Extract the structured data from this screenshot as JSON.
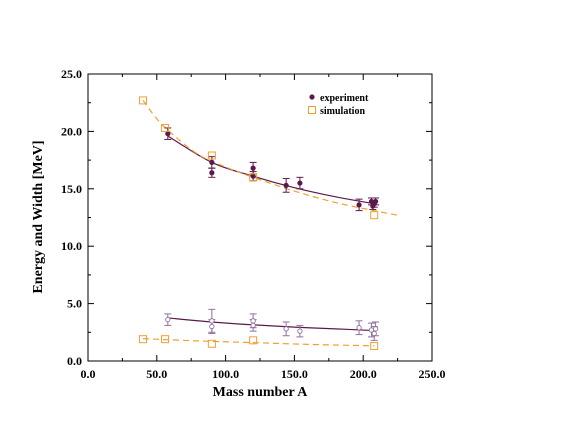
{
  "chart_data": {
    "type": "scatter",
    "title": "",
    "xlabel": "Mass number A",
    "ylabel": "Energy and Width  [MeV]",
    "xlim": [
      0,
      250
    ],
    "ylim": [
      0,
      25
    ],
    "xticks": [
      0,
      50,
      100,
      150,
      200,
      250
    ],
    "yticks": [
      0,
      5,
      10,
      15,
      20,
      25
    ],
    "xtick_labels": [
      "0.0",
      "50.0",
      "100.0",
      "150.0",
      "200.0",
      "250.0"
    ],
    "ytick_labels": [
      "0.0",
      "5.0",
      "10.0",
      "15.0",
      "20.0",
      "25.0"
    ],
    "grid": false,
    "legend_position": "top-right",
    "legend": [
      {
        "label": "experiment",
        "marker": "filled-circle",
        "color": "#5a1a4a"
      },
      {
        "label": "simulation",
        "marker": "open-square",
        "color": "#f0a030"
      }
    ],
    "colors": {
      "experiment": "#5a1a4a",
      "experiment_width": "#9070a0",
      "simulation": "#f0a030"
    },
    "series": [
      {
        "name": "experiment",
        "kind": "energy",
        "marker": "filled-circle",
        "points": [
          {
            "x": 58,
            "y": 19.8,
            "err": 0.5
          },
          {
            "x": 90,
            "y": 17.3,
            "err": 0.5
          },
          {
            "x": 90,
            "y": 16.4,
            "err": 0.4
          },
          {
            "x": 120,
            "y": 16.8,
            "err": 0.5
          },
          {
            "x": 120,
            "y": 16.1,
            "err": 0.4
          },
          {
            "x": 144,
            "y": 15.3,
            "err": 0.6
          },
          {
            "x": 154,
            "y": 15.5,
            "err": 0.5
          },
          {
            "x": 197,
            "y": 13.6,
            "err": 0.5
          },
          {
            "x": 206,
            "y": 13.9,
            "err": 0.3
          },
          {
            "x": 207,
            "y": 13.5,
            "err": 0.3
          },
          {
            "x": 208,
            "y": 13.7,
            "err": 0.3
          },
          {
            "x": 209,
            "y": 13.9,
            "err": 0.3
          }
        ]
      },
      {
        "name": "experiment",
        "kind": "width",
        "marker": "open-circle",
        "points": [
          {
            "x": 58,
            "y": 3.6,
            "err": 0.5
          },
          {
            "x": 90,
            "y": 3.5,
            "err": 1.0
          },
          {
            "x": 90,
            "y": 3.0,
            "err": 0.6
          },
          {
            "x": 120,
            "y": 3.5,
            "err": 0.6
          },
          {
            "x": 120,
            "y": 3.1,
            "err": 0.5
          },
          {
            "x": 144,
            "y": 2.8,
            "err": 0.6
          },
          {
            "x": 154,
            "y": 2.6,
            "err": 0.5
          },
          {
            "x": 197,
            "y": 2.9,
            "err": 0.6
          },
          {
            "x": 206,
            "y": 2.7,
            "err": 0.6
          },
          {
            "x": 208,
            "y": 2.4,
            "err": 0.6
          },
          {
            "x": 209,
            "y": 2.8,
            "err": 0.6
          }
        ]
      },
      {
        "name": "simulation",
        "kind": "energy",
        "marker": "open-square",
        "points": [
          {
            "x": 40,
            "y": 22.7
          },
          {
            "x": 56,
            "y": 20.3
          },
          {
            "x": 90,
            "y": 17.9
          },
          {
            "x": 120,
            "y": 16.0
          },
          {
            "x": 208,
            "y": 12.7
          }
        ]
      },
      {
        "name": "simulation",
        "kind": "width",
        "marker": "open-square",
        "points": [
          {
            "x": 40,
            "y": 1.9
          },
          {
            "x": 56,
            "y": 1.9
          },
          {
            "x": 90,
            "y": 1.5
          },
          {
            "x": 120,
            "y": 1.8
          },
          {
            "x": 208,
            "y": 1.3
          }
        ]
      }
    ],
    "fit_curves": [
      {
        "series": "experiment",
        "kind": "energy",
        "style": "solid",
        "points": [
          [
            58,
            19.6
          ],
          [
            90,
            17.3
          ],
          [
            120,
            16.1
          ],
          [
            150,
            15.1
          ],
          [
            180,
            14.3
          ],
          [
            208,
            13.7
          ]
        ]
      },
      {
        "series": "experiment",
        "kind": "width",
        "style": "solid",
        "points": [
          [
            58,
            3.75
          ],
          [
            90,
            3.4
          ],
          [
            120,
            3.15
          ],
          [
            150,
            2.95
          ],
          [
            180,
            2.8
          ],
          [
            208,
            2.65
          ]
        ]
      },
      {
        "series": "simulation",
        "kind": "energy",
        "style": "dashed",
        "points": [
          [
            40,
            22.7
          ],
          [
            50,
            21.1
          ],
          [
            60,
            19.9
          ],
          [
            80,
            18.0
          ],
          [
            100,
            16.9
          ],
          [
            120,
            16.0
          ],
          [
            150,
            14.8
          ],
          [
            180,
            13.8
          ],
          [
            208,
            13.1
          ],
          [
            225,
            12.7
          ]
        ]
      },
      {
        "series": "simulation",
        "kind": "width",
        "style": "dashed",
        "points": [
          [
            40,
            1.95
          ],
          [
            80,
            1.75
          ],
          [
            120,
            1.6
          ],
          [
            160,
            1.45
          ],
          [
            208,
            1.32
          ]
        ]
      }
    ]
  }
}
